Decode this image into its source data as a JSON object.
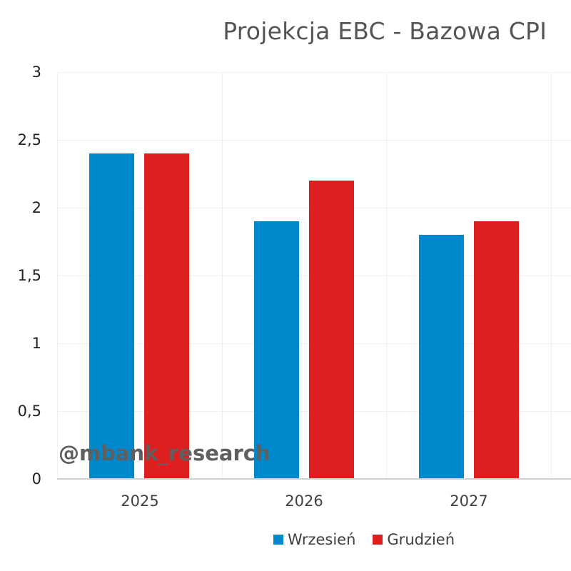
{
  "chart_data": {
    "type": "bar",
    "title": "Projekcja EBC - Bazowa CPI",
    "xlabel": "",
    "ylabel": "",
    "categories": [
      "2025",
      "2026",
      "2027"
    ],
    "series": [
      {
        "name": "Wrzesień",
        "color": "#0088CC",
        "values": [
          2.4,
          1.9,
          1.8
        ]
      },
      {
        "name": "Grudzień",
        "color": "#DD1F1F",
        "values": [
          2.4,
          2.2,
          1.9
        ]
      }
    ],
    "ylim": [
      0,
      3
    ],
    "yticks": [
      "0",
      "0,5",
      "1",
      "1,5",
      "2",
      "2,5",
      "3"
    ],
    "grid": true,
    "legend_position": "bottom",
    "annotations": [
      "@mbank_research"
    ]
  },
  "title": "Projekcja EBC - Bazowa CPI",
  "watermark": "@mbank_research",
  "yaxis": {
    "ticks": [
      "3",
      "2,5",
      "2",
      "1,5",
      "1",
      "0,5",
      "0"
    ]
  },
  "xaxis": {
    "ticks": [
      "2025",
      "2026",
      "2027"
    ]
  },
  "legend": {
    "items": [
      {
        "label": "Wrzesień",
        "color": "#0088CC"
      },
      {
        "label": "Grudzień",
        "color": "#DD1F1F"
      }
    ]
  }
}
